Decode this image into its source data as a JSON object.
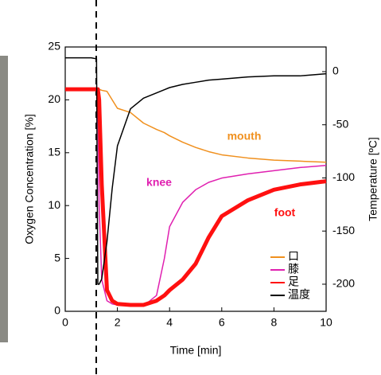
{
  "chart_data": {
    "type": "line",
    "xlabel": "Time [min]",
    "ylabel": "Oxygen Concentration [%]",
    "y2label": "Temperature [ºC]",
    "x": [
      0,
      1,
      1.2,
      1.25,
      1.3,
      1.4,
      1.6,
      1.8,
      2,
      2.5,
      3,
      3.5,
      3.8,
      4,
      4.5,
      5,
      5.5,
      6,
      7,
      8,
      9,
      10
    ],
    "series": [
      {
        "name": "口",
        "color": "#f0901e",
        "width": 1.5,
        "values": [
          21,
          21,
          21,
          21,
          21,
          20.9,
          20.8,
          20,
          19.2,
          18.8,
          17.8,
          17.2,
          16.9,
          16.6,
          16,
          15.5,
          15.1,
          14.8,
          14.5,
          14.3,
          14.2,
          14.1
        ]
      },
      {
        "name": "膝",
        "color": "#e020b0",
        "width": 1.5,
        "values": [
          21,
          21,
          21,
          20,
          10,
          3,
          1,
          0.7,
          0.6,
          0.5,
          0.5,
          1.5,
          5,
          8,
          10.3,
          11.5,
          12.2,
          12.6,
          13,
          13.3,
          13.6,
          13.8
        ]
      },
      {
        "name": "足",
        "color": "#ff1010",
        "width": 5,
        "values": [
          21,
          21,
          21,
          21,
          20,
          12,
          2,
          1,
          0.7,
          0.6,
          0.6,
          1,
          1.5,
          2,
          3,
          4.5,
          7,
          9,
          10.5,
          11.5,
          12,
          12.3
        ]
      },
      {
        "name": "温度",
        "color": "#000000",
        "width": 1.5,
        "axis": "y2",
        "values": [
          13,
          13,
          12,
          -200,
          -200,
          -195,
          -160,
          -110,
          -70,
          -35,
          -25,
          -20,
          -17,
          -15,
          -12,
          -10,
          -8,
          -7,
          -5,
          -4,
          -4,
          -2
        ]
      }
    ],
    "annotations": [
      {
        "text": "mouth",
        "color": "#f0901e"
      },
      {
        "text": "knee",
        "color": "#e020b0"
      },
      {
        "text": "foot",
        "color": "#ff1010"
      }
    ],
    "xlim": [
      0,
      10
    ],
    "xticks": [
      0,
      2,
      4,
      6,
      8,
      10
    ],
    "ylim": [
      0,
      25
    ],
    "yticks": [
      0,
      5,
      10,
      15,
      20,
      25
    ],
    "y2lim": [
      -225.5,
      23.2
    ],
    "y2ticks": [
      0,
      -50,
      -100,
      -150,
      -200
    ],
    "legend": "lower right"
  }
}
